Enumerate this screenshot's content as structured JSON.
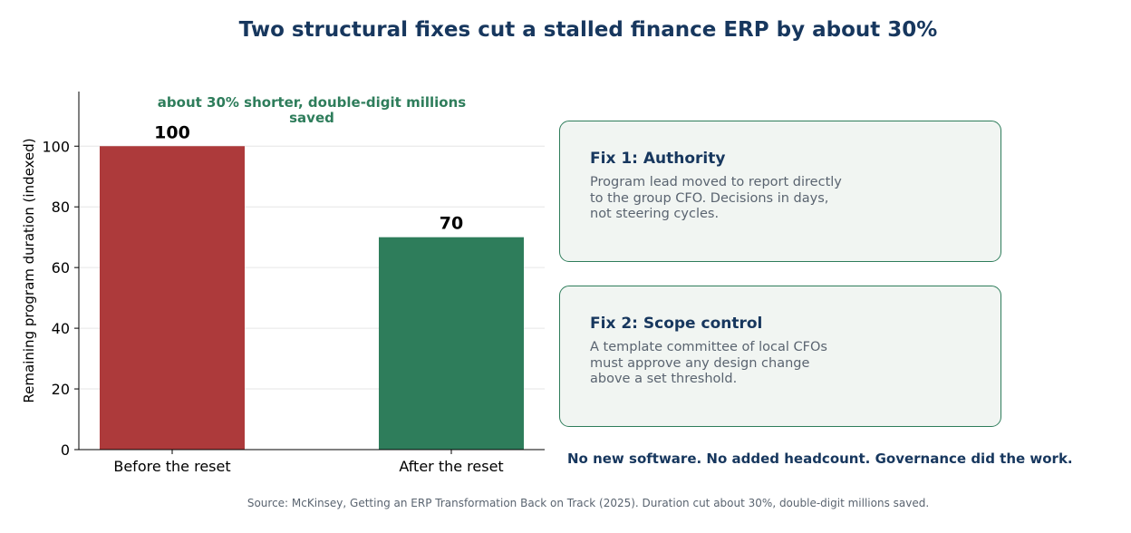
{
  "title": "Two structural fixes cut a stalled finance ERP by about 30%",
  "chart_data": {
    "type": "bar",
    "categories": [
      "Before the reset",
      "After the reset"
    ],
    "values": [
      100,
      70
    ],
    "value_labels": [
      "100",
      "70"
    ],
    "bar_colors": [
      "#ad3a3b",
      "#2e7d5b"
    ],
    "ylabel": "Remaining program duration (indexed)",
    "ylim": [
      0,
      118
    ],
    "yticks": [
      0,
      20,
      40,
      60,
      80,
      100
    ],
    "grid": true,
    "annotation": "about 30% shorter, double-digit millions saved",
    "annotation_color": "#2e7d5b"
  },
  "cards": [
    {
      "title": "Fix 1: Authority",
      "lines": [
        "Program lead moved to report directly",
        "to the group CFO. Decisions in days,",
        "not steering cycles."
      ]
    },
    {
      "title": "Fix 2: Scope control",
      "lines": [
        "A template committee of local CFOs",
        "must approve any design change",
        "above a set threshold."
      ]
    }
  ],
  "takeaway": "No new software. No added headcount. Governance did the work.",
  "source": "Source: McKinsey, Getting an ERP Transformation Back on Track (2025). Duration cut about 30%, double-digit millions saved.",
  "colors": {
    "title": "#17375e",
    "accent_green": "#2e7d5b",
    "accent_red": "#ad3a3b",
    "card_bg": "#f1f5f2",
    "muted": "#5a6470"
  }
}
